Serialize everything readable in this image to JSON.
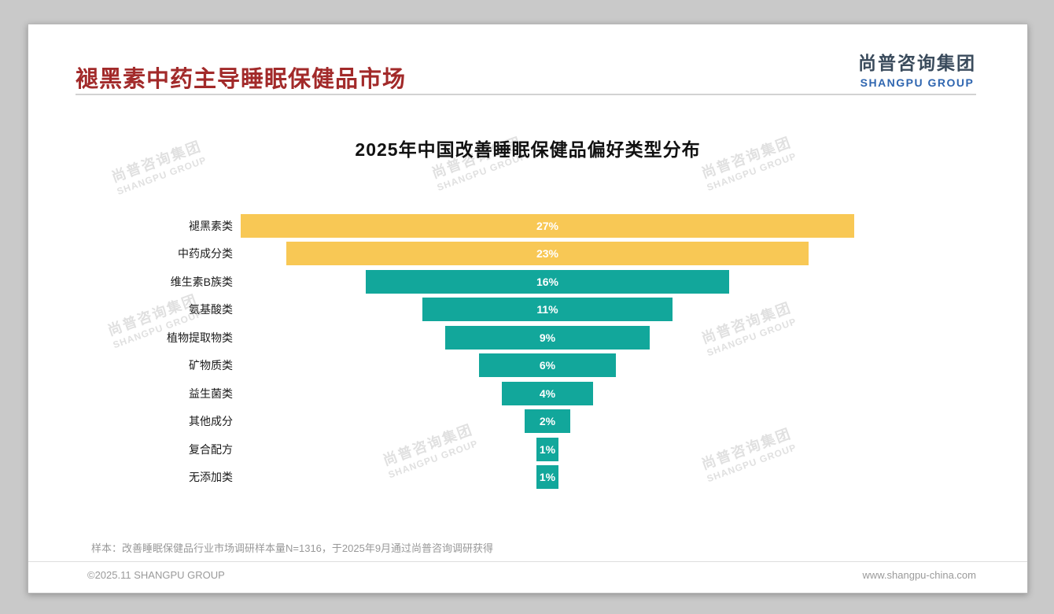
{
  "page": {
    "header": {
      "title": "褪黑素中药主导睡眠保健品市场"
    },
    "logo": {
      "cn": "尚普咨询集团",
      "en": "SHANGPU GROUP"
    },
    "watermark": {
      "cn": "尚普咨询集团",
      "en": "SHANGPU GROUP"
    },
    "note": "样本：改善睡眠保健品行业市场调研样本量N=1316，于2025年9月通过尚普咨询调研获得",
    "footer": {
      "left": "©2025.11 SHANGPU GROUP",
      "right": "www.shangpu-china.com"
    }
  },
  "chart_data": {
    "type": "bar",
    "variant": "horizontal-centered-funnel",
    "title": "2025年中国改善睡眠保健品偏好类型分布",
    "categories": [
      "褪黑素类",
      "中药成分类",
      "维生素B族类",
      "氨基酸类",
      "植物提取物类",
      "矿物质类",
      "益生菌类",
      "其他成分",
      "复合配方",
      "无添加类"
    ],
    "values": [
      27,
      23,
      16,
      11,
      9,
      6,
      4,
      2,
      1,
      1
    ],
    "value_labels": [
      "27%",
      "23%",
      "16%",
      "11%",
      "9%",
      "6%",
      "4%",
      "2%",
      "1%",
      "1%"
    ],
    "unit": "%",
    "xlim": [
      0,
      27
    ],
    "grid": false,
    "legend": "none",
    "colors": {
      "highlight": "#F8C855",
      "default": "#12A79B"
    },
    "highlight_count": 2
  }
}
